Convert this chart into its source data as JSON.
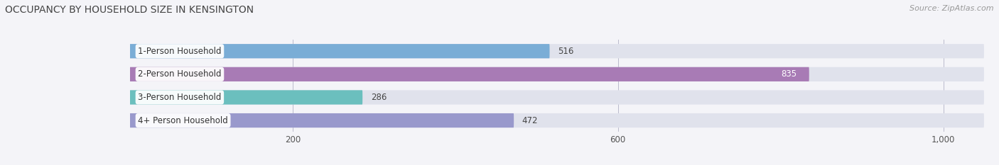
{
  "title": "OCCUPANCY BY HOUSEHOLD SIZE IN KENSINGTON",
  "source": "Source: ZipAtlas.com",
  "categories": [
    "1-Person Household",
    "2-Person Household",
    "3-Person Household",
    "4+ Person Household"
  ],
  "values": [
    516,
    835,
    286,
    472
  ],
  "bar_colors": [
    "#7aadd6",
    "#a87bb5",
    "#6bbfbe",
    "#9999cc"
  ],
  "bar_bg_color": "#e0e2ec",
  "background_color": "#f4f4f8",
  "xlim_max": 1050,
  "xticks": [
    200,
    600,
    1000
  ],
  "xtick_labels": [
    "200",
    "600",
    "1,000"
  ],
  "title_fontsize": 10,
  "source_fontsize": 8,
  "bar_label_fontsize": 8.5,
  "category_fontsize": 8.5,
  "value2_color": "#ffffff"
}
